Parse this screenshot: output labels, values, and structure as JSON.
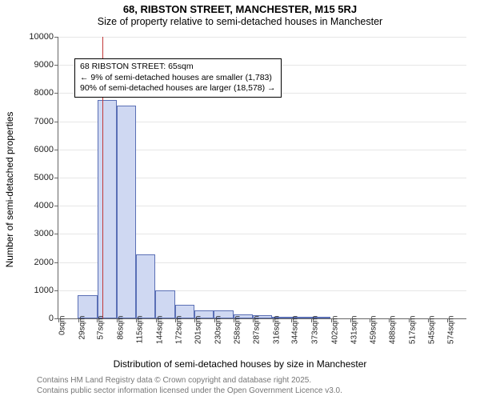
{
  "title": "68, RIBSTON STREET, MANCHESTER, M15 5RJ",
  "subtitle": "Size of property relative to semi-detached houses in Manchester",
  "xlabel": "Distribution of semi-detached houses by size in Manchester",
  "ylabel": "Number of semi-detached properties",
  "footer_line1": "Contains HM Land Registry data © Crown copyright and database right 2025.",
  "footer_line2": "Contains public sector information licensed under the Open Government Licence v3.0.",
  "chart": {
    "type": "histogram",
    "background_color": "#ffffff",
    "grid_color": "#e6e6e6",
    "axis_color": "#666666",
    "tick_font_size": 11,
    "bar_fill": "#cfd8f2",
    "bar_stroke": "#5a6fb5",
    "bar_stroke_width": 1,
    "refline_color": "#c33a3a",
    "refline_x": 65,
    "ylim": [
      0,
      10000
    ],
    "yticks": [
      0,
      1000,
      2000,
      3000,
      4000,
      5000,
      6000,
      7000,
      8000,
      9000,
      10000
    ],
    "xlim": [
      0,
      602
    ],
    "xticks": [
      0,
      29,
      57,
      86,
      115,
      144,
      172,
      201,
      230,
      258,
      287,
      316,
      344,
      373,
      402,
      431,
      459,
      488,
      517,
      545,
      574
    ],
    "xtick_unit": "sqm",
    "bin_width": 28.67,
    "bars": [
      {
        "x0": 0,
        "y": 0
      },
      {
        "x0": 28.67,
        "y": 830
      },
      {
        "x0": 57.33,
        "y": 7750
      },
      {
        "x0": 86.0,
        "y": 7570
      },
      {
        "x0": 114.67,
        "y": 2260
      },
      {
        "x0": 143.33,
        "y": 1000
      },
      {
        "x0": 172.0,
        "y": 480
      },
      {
        "x0": 200.67,
        "y": 290
      },
      {
        "x0": 229.33,
        "y": 280
      },
      {
        "x0": 258.0,
        "y": 140
      },
      {
        "x0": 286.67,
        "y": 105
      },
      {
        "x0": 315.33,
        "y": 70
      },
      {
        "x0": 344.0,
        "y": 55
      },
      {
        "x0": 372.67,
        "y": 55
      }
    ],
    "annotation": {
      "line1": "68 RIBSTON STREET: 65sqm",
      "line2": "← 9% of semi-detached houses are smaller (1,783)",
      "line3": "90% of semi-detached houses are larger (18,578) →"
    }
  }
}
